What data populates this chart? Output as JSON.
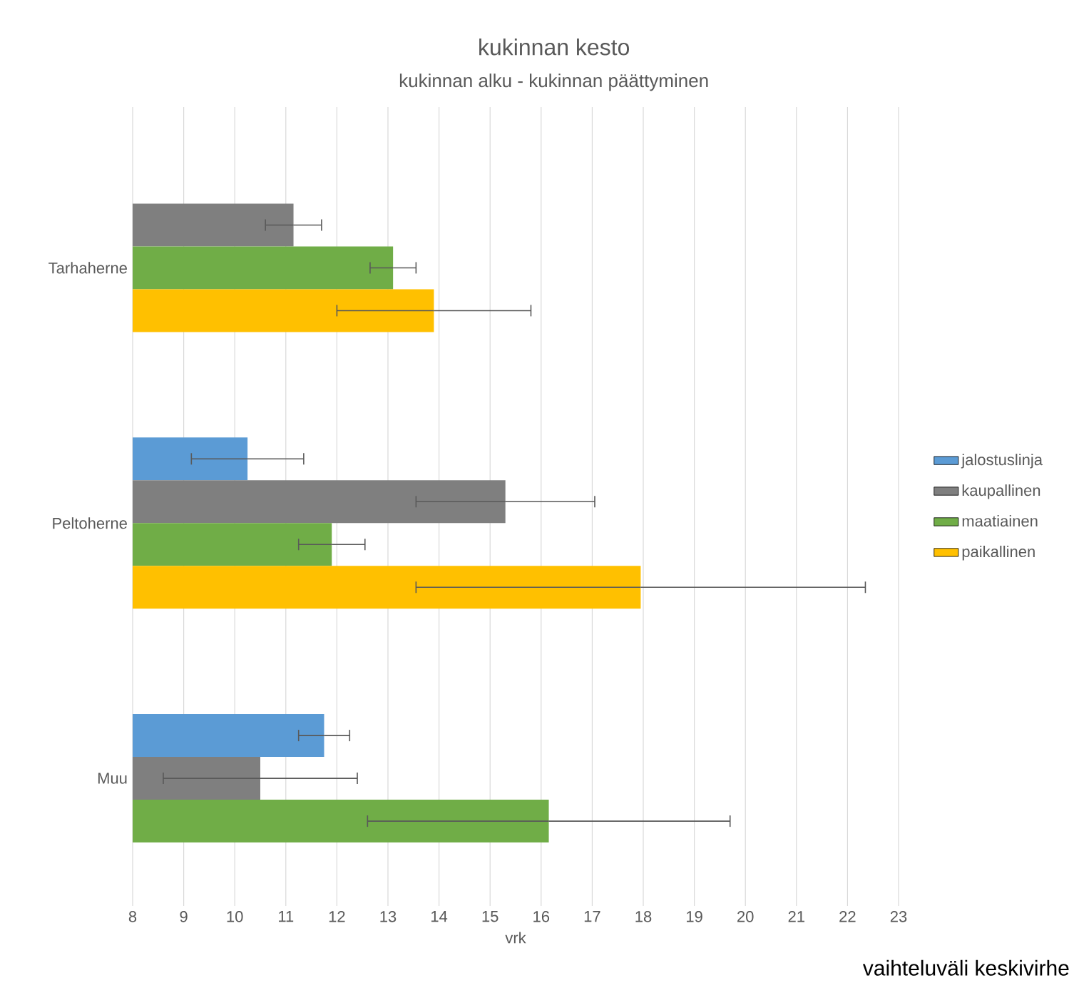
{
  "chart_data": {
    "type": "bar",
    "orientation": "horizontal",
    "title": "kukinnan kesto",
    "subtitle": "kukinnan alku - kukinnan päättyminen",
    "xlabel": "vrk",
    "categories": [
      "Tarhaherne",
      "Peltoherne",
      "Muu"
    ],
    "series": [
      {
        "name": "jalostuslinja",
        "color": "#5b9bd5",
        "values": [
          null,
          10.25,
          11.75
        ],
        "errors": [
          null,
          1.1,
          0.5
        ]
      },
      {
        "name": "kaupallinen",
        "color": "#7f7f7f",
        "values": [
          11.15,
          15.3,
          10.5
        ],
        "errors": [
          0.55,
          1.75,
          1.9
        ]
      },
      {
        "name": "maatiainen",
        "color": "#70ad47",
        "values": [
          13.1,
          11.9,
          16.15
        ],
        "errors": [
          0.45,
          0.65,
          3.55
        ]
      },
      {
        "name": "paikallinen",
        "color": "#ffc000",
        "values": [
          13.9,
          17.95,
          null
        ],
        "errors": [
          1.9,
          4.4,
          null
        ]
      }
    ],
    "xlim": [
      8,
      23
    ],
    "xticks": [
      8,
      9,
      10,
      11,
      12,
      13,
      14,
      15,
      16,
      17,
      18,
      19,
      20,
      21,
      22,
      23
    ],
    "grid": "x",
    "legend": "right",
    "annotations": [
      "vaihteluväli keskivirhe"
    ]
  }
}
